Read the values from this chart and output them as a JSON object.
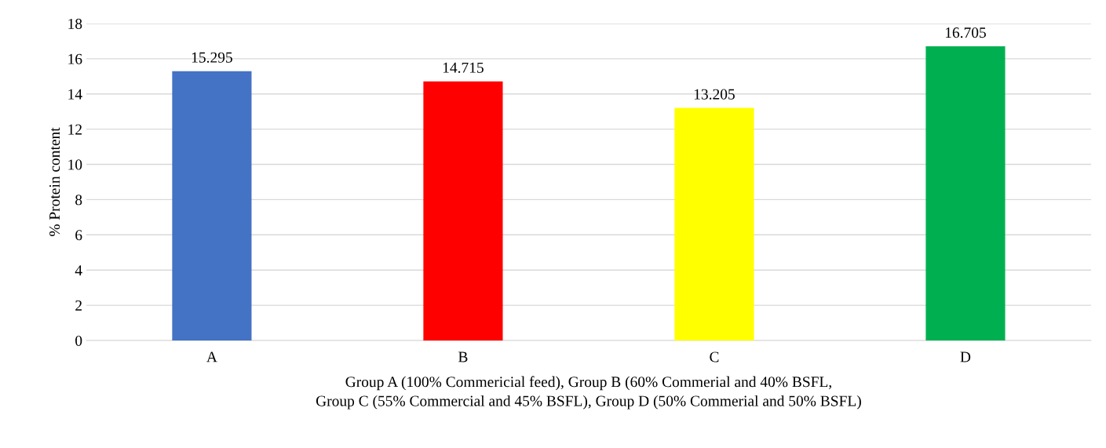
{
  "chart_data": {
    "type": "bar",
    "categories": [
      "A",
      "B",
      "C",
      "D"
    ],
    "values": [
      15.295,
      14.715,
      13.205,
      16.705
    ],
    "colors": [
      "#4472c4",
      "#ff0000",
      "#ffff00",
      "#00b050"
    ],
    "ylabel": "% Protein content",
    "xlabel": "Group A (100% Commericial feed), Group B (60% Commerial and 40% BSFL,\nGroup C (55% Commercial and 45% BSFL), Group D (50% Commerial and 50% BSFL)",
    "ylim": [
      0,
      18
    ],
    "yticks": [
      0,
      2,
      4,
      6,
      8,
      10,
      12,
      14,
      16,
      18
    ],
    "grid": "y",
    "data_labels": true
  }
}
